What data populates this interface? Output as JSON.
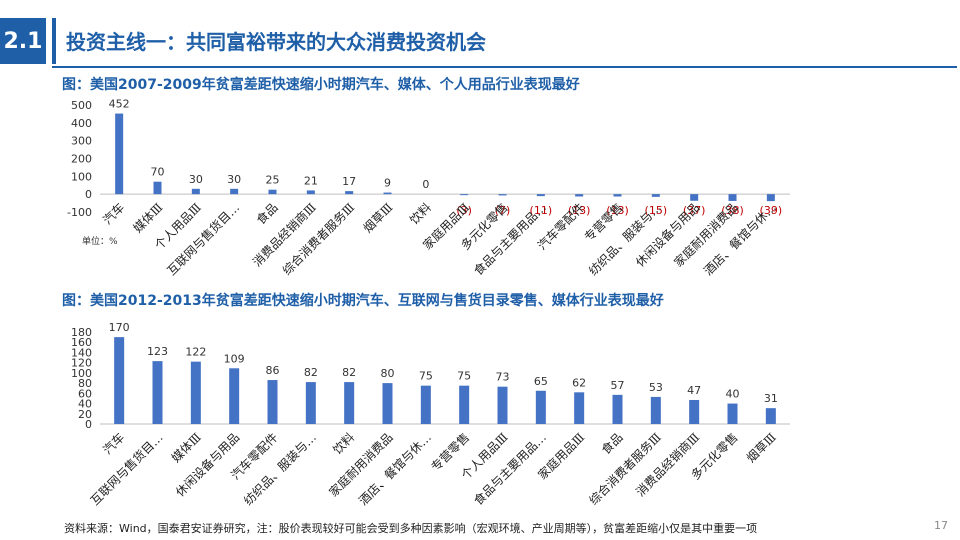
{
  "header": {
    "section_number": "2.1",
    "title": "投资主线一：共同富裕带来的大众消费投资机会"
  },
  "chart_data": [
    {
      "type": "bar",
      "title": "图：美国2007-2009年贫富差距快速缩小时期汽车、媒体、个人用品行业表现最好",
      "unit_note": "单位：%",
      "categories": [
        "汽车",
        "媒体Ⅲ",
        "个人用品Ⅲ",
        "互联网与售货目…",
        "食品",
        "消费品经销商Ⅲ",
        "综合消费者服务Ⅲ",
        "烟草Ⅲ",
        "饮料",
        "家庭用品Ⅲ",
        "多元化零售",
        "食品与主要用品…",
        "汽车零配件",
        "专营零售",
        "纺织品、服装与…",
        "休闲设备与用品",
        "家庭耐用消费品",
        "酒店、餐馆与休…"
      ],
      "values": [
        452,
        70,
        30,
        30,
        25,
        21,
        17,
        9,
        0,
        -3,
        -7,
        -11,
        -13,
        -13,
        -15,
        -37,
        -38,
        -39
      ],
      "labels": [
        "452",
        "70",
        "30",
        "30",
        "25",
        "21",
        "17",
        "9",
        "0",
        "(3)",
        "(7)",
        "(11)",
        "(13)",
        "(13)",
        "(15)",
        "(37)",
        "(38)",
        "(39)"
      ],
      "ylim": [
        -100,
        500
      ],
      "yticks": [
        "500",
        "400",
        "300",
        "200",
        "100",
        "0",
        "-100"
      ],
      "bar_color": "#4472c4",
      "negative_label_color": "#c00000"
    },
    {
      "type": "bar",
      "title": "图：美国2012-2013年贫富差距快速缩小时期汽车、互联网与售货目录零售、媒体行业表现最好",
      "categories": [
        "汽车",
        "互联网与售货目…",
        "媒体Ⅲ",
        "休闲设备与用品",
        "汽车零配件",
        "纺织品、服装与…",
        "饮料",
        "家庭耐用消费品",
        "酒店、餐馆与休…",
        "专营零售",
        "个人用品Ⅲ",
        "食品与主要用品…",
        "家庭用品Ⅲ",
        "食品",
        "综合消费者服务Ⅲ",
        "消费品经销商Ⅲ",
        "多元化零售",
        "烟草Ⅲ"
      ],
      "values": [
        170,
        123,
        122,
        109,
        86,
        82,
        82,
        80,
        75,
        75,
        73,
        65,
        62,
        57,
        53,
        47,
        40,
        31
      ],
      "labels": [
        "170",
        "123",
        "122",
        "109",
        "86",
        "82",
        "82",
        "80",
        "75",
        "75",
        "73",
        "65",
        "62",
        "57",
        "53",
        "47",
        "40",
        "31"
      ],
      "ylim": [
        0,
        180
      ],
      "yticks": [
        "180",
        "160",
        "140",
        "120",
        "100",
        "80",
        "60",
        "40",
        "20",
        "0"
      ],
      "bar_color": "#4472c4"
    }
  ],
  "footer": {
    "source": "资料来源：Wind，国泰君安证券研究，注：股价表现较好可能会受到多种因素影响（宏观环境、产业周期等），贫富差距缩小仅是其中重要一项",
    "page": "17"
  }
}
